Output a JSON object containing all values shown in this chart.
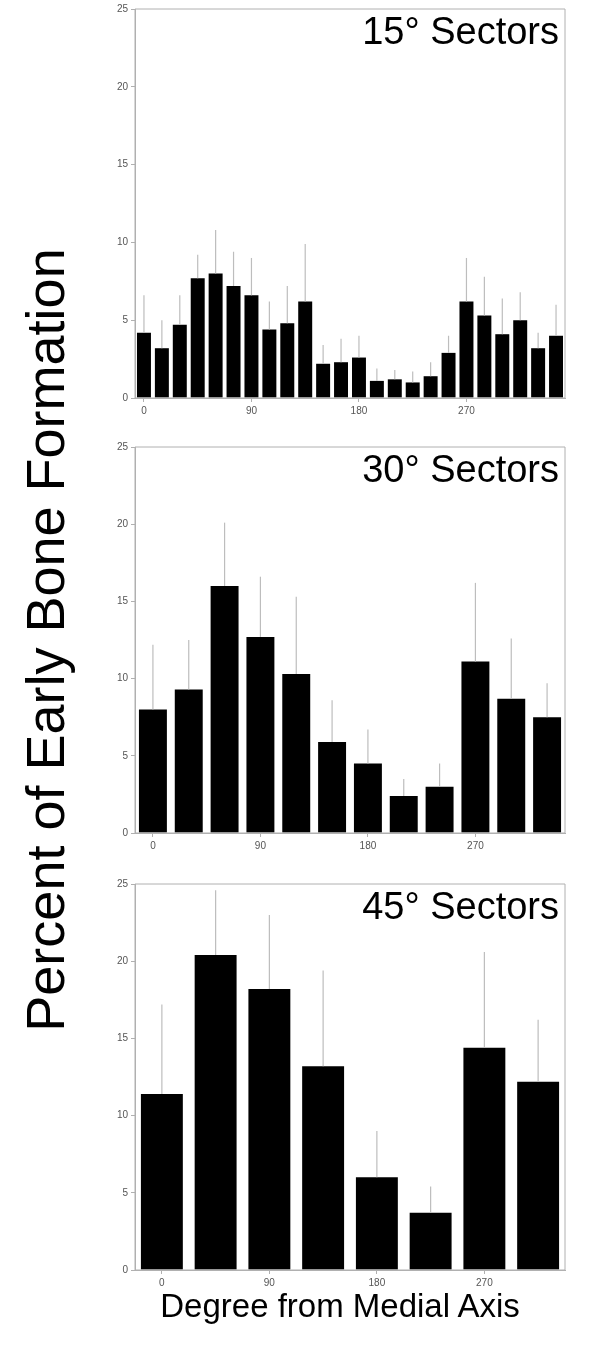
{
  "chart_data": [
    {
      "type": "bar",
      "title": "15° Sectors",
      "categories": [
        "0",
        null,
        null,
        null,
        null,
        null,
        "90",
        null,
        null,
        null,
        null,
        null,
        "180",
        null,
        null,
        null,
        null,
        null,
        "270",
        null,
        null,
        null,
        null,
        null
      ],
      "values": [
        4.2,
        3.2,
        4.7,
        7.7,
        8.0,
        7.2,
        6.6,
        4.4,
        4.8,
        6.2,
        2.2,
        2.3,
        2.6,
        1.1,
        1.2,
        1.0,
        1.4,
        2.9,
        6.2,
        5.3,
        4.1,
        5.0,
        3.2,
        4.0
      ],
      "errors": [
        [
          4.2,
          6.6
        ],
        [
          3.2,
          5.0
        ],
        [
          4.7,
          6.6
        ],
        [
          7.7,
          9.2
        ],
        [
          8.0,
          10.8
        ],
        [
          7.2,
          9.4
        ],
        [
          6.6,
          9.0
        ],
        [
          4.4,
          6.2
        ],
        [
          4.8,
          7.2
        ],
        [
          6.2,
          9.9
        ],
        [
          2.2,
          3.4
        ],
        [
          2.3,
          3.8
        ],
        [
          2.6,
          4.0
        ],
        [
          1.1,
          1.9
        ],
        [
          1.2,
          1.8
        ],
        [
          1.0,
          1.7
        ],
        [
          1.4,
          2.3
        ],
        [
          2.9,
          4.0
        ],
        [
          6.2,
          9.0
        ],
        [
          5.3,
          7.8
        ],
        [
          4.1,
          6.4
        ],
        [
          5.0,
          6.8
        ],
        [
          3.2,
          4.2
        ],
        [
          4.0,
          6.0
        ]
      ],
      "color": "#000000",
      "ylim": [
        0,
        25
      ],
      "yticks": [
        0,
        5,
        10,
        15,
        20,
        25
      ],
      "grid": false,
      "legend": false
    },
    {
      "type": "bar",
      "title": "30° Sectors",
      "ylabel": "Percent of Early Bone Formation",
      "categories": [
        "0",
        null,
        null,
        "90",
        null,
        null,
        "180",
        null,
        null,
        "270",
        null,
        null
      ],
      "values": [
        8.0,
        9.3,
        16.0,
        12.7,
        10.3,
        5.9,
        4.5,
        2.4,
        3.0,
        11.1,
        8.7,
        7.5
      ],
      "errors": [
        [
          8.0,
          12.2
        ],
        [
          9.3,
          12.5
        ],
        [
          16.0,
          20.1
        ],
        [
          12.7,
          16.6
        ],
        [
          10.3,
          15.3
        ],
        [
          5.9,
          8.6
        ],
        [
          4.5,
          6.7
        ],
        [
          2.4,
          3.5
        ],
        [
          3.0,
          4.5
        ],
        [
          11.1,
          16.2
        ],
        [
          8.7,
          12.6
        ],
        [
          7.5,
          9.7
        ]
      ],
      "color": "#000000",
      "ylim": [
        0,
        25
      ],
      "yticks": [
        0,
        5,
        10,
        15,
        20,
        25
      ],
      "grid": false,
      "legend": false
    },
    {
      "type": "bar",
      "title": "45° Sectors",
      "xlabel": "Degree from Medial Axis",
      "categories": [
        "0",
        null,
        "90",
        null,
        "180",
        null,
        "270",
        null
      ],
      "values": [
        11.4,
        20.4,
        18.2,
        13.2,
        6.0,
        3.7,
        14.4,
        12.2
      ],
      "errors": [
        [
          11.4,
          17.2
        ],
        [
          20.4,
          24.6
        ],
        [
          18.2,
          23.0
        ],
        [
          13.2,
          19.4
        ],
        [
          6.0,
          9.0
        ],
        [
          3.7,
          5.4
        ],
        [
          14.4,
          20.6
        ],
        [
          12.2,
          16.2
        ]
      ],
      "color": "#000000",
      "ylim": [
        0,
        25
      ],
      "yticks": [
        0,
        5,
        10,
        15,
        20,
        25
      ],
      "grid": false,
      "legend": false
    }
  ]
}
